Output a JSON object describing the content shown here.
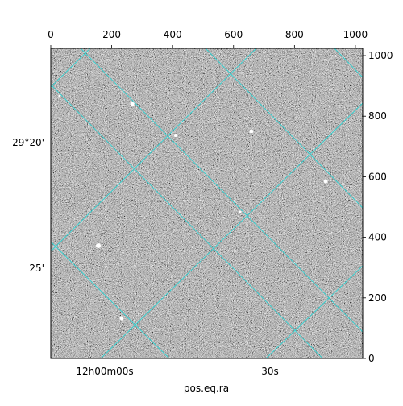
{
  "chart_data": {
    "type": "image",
    "xlabel": "pos.eq.ra",
    "xlim": [
      0,
      1024
    ],
    "ylim": [
      0,
      1024
    ],
    "xticks": [
      0,
      200,
      400,
      600,
      800,
      1000
    ],
    "yticks": [
      0,
      200,
      400,
      600,
      800,
      1000
    ],
    "ra_tick_labels": [
      "12h00m00s",
      "30s"
    ],
    "dec_tick_labels": [
      "29°20'",
      "25'"
    ],
    "grid_color": "#2fd3d3"
  }
}
